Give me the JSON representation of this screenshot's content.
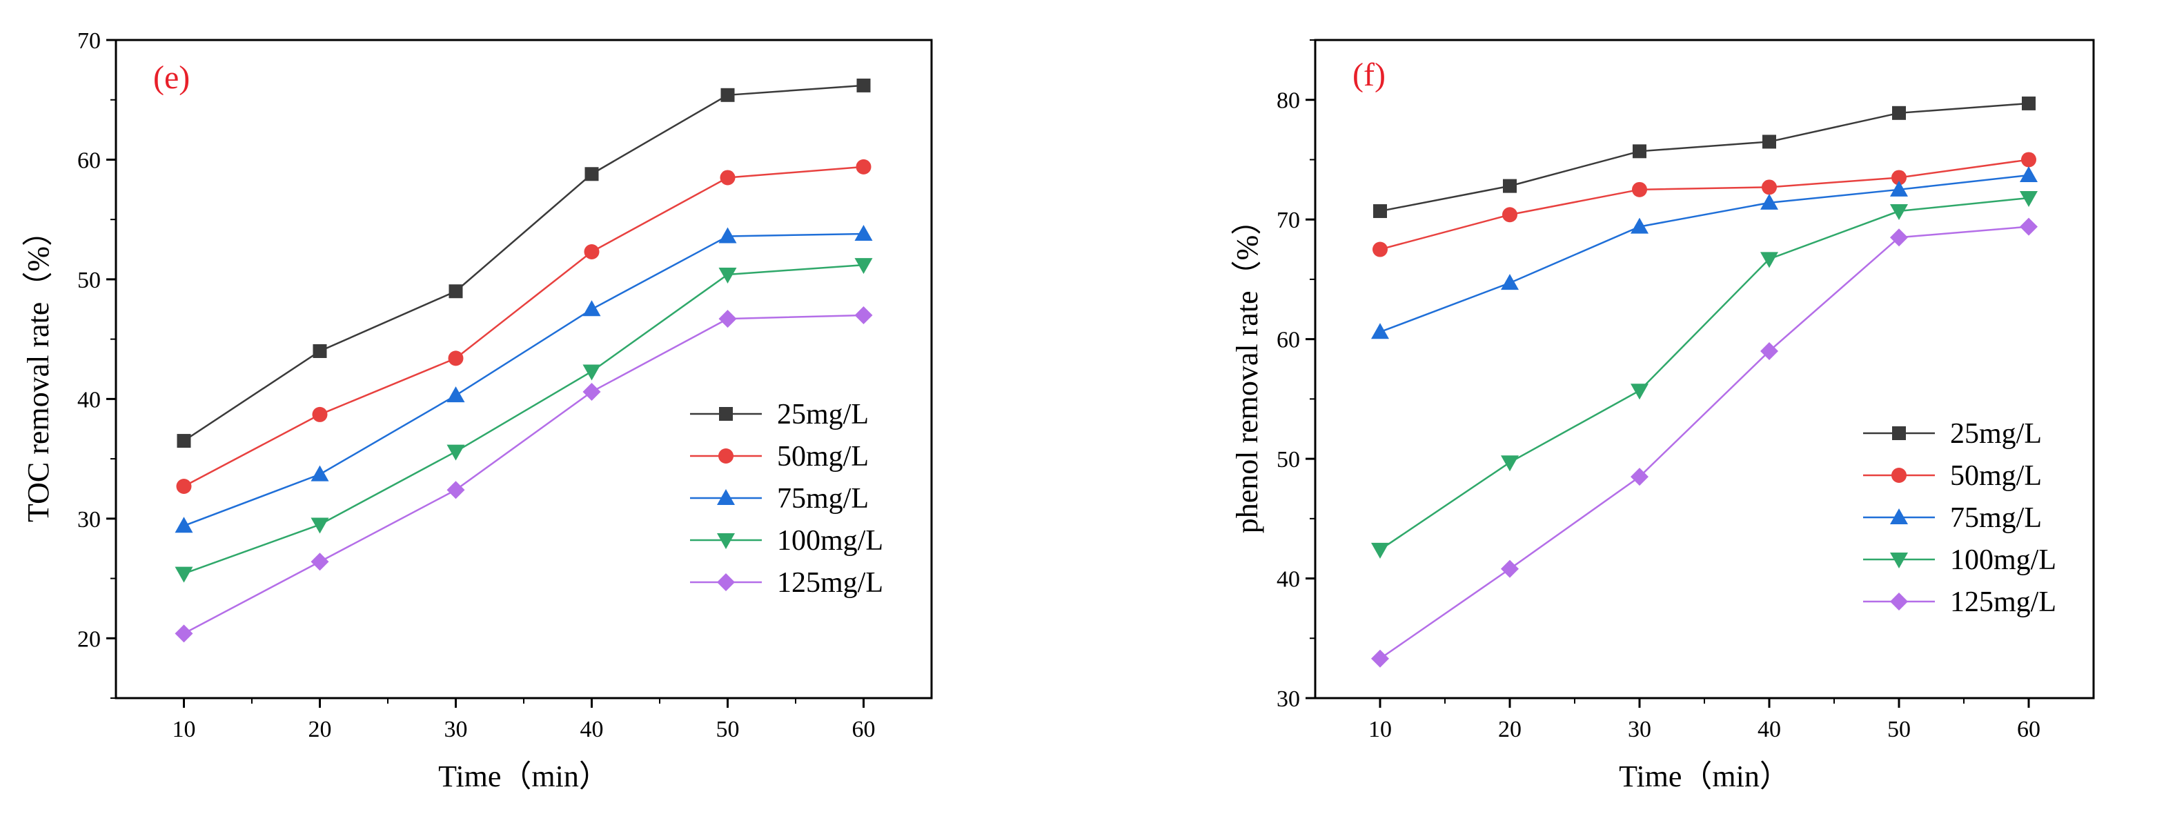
{
  "colors": {
    "axis": "#000000",
    "panel_label": "#e8202a",
    "series": [
      "#3a3a3a",
      "#e8413f",
      "#1f6fd8",
      "#2fa86a",
      "#b46ee8"
    ]
  },
  "chart_data": [
    {
      "type": "line",
      "panel_label": "(e)",
      "title": "",
      "xlabel": "Time（min）",
      "ylabel": "TOC removal rate（%）",
      "x": [
        10,
        20,
        30,
        40,
        50,
        60
      ],
      "xlim": [
        5,
        65
      ],
      "ylim": [
        15,
        70
      ],
      "x_ticks": [
        "10",
        "20",
        "30",
        "40",
        "50",
        "60"
      ],
      "y_ticks": [
        "20",
        "30",
        "40",
        "50",
        "60",
        "70"
      ],
      "legend_position": "center-right",
      "series": [
        {
          "name": "25mg/L",
          "marker": "square",
          "values": [
            36.5,
            44.0,
            49.0,
            58.8,
            65.4,
            66.2
          ]
        },
        {
          "name": "50mg/L",
          "marker": "circle",
          "values": [
            32.7,
            38.7,
            43.4,
            52.3,
            58.5,
            59.4
          ]
        },
        {
          "name": "75mg/L",
          "marker": "triangle-up",
          "values": [
            29.4,
            33.7,
            40.3,
            47.5,
            53.6,
            53.8
          ]
        },
        {
          "name": "100mg/L",
          "marker": "triangle-down",
          "values": [
            25.4,
            29.5,
            35.6,
            42.3,
            50.4,
            51.2
          ]
        },
        {
          "name": "125mg/L",
          "marker": "diamond",
          "values": [
            20.4,
            26.4,
            32.4,
            40.6,
            46.7,
            47.0
          ]
        }
      ]
    },
    {
      "type": "line",
      "panel_label": "(f)",
      "title": "",
      "xlabel": "Time（min）",
      "ylabel": "phenol removal rate（%）",
      "x": [
        10,
        20,
        30,
        40,
        50,
        60
      ],
      "xlim": [
        5,
        65
      ],
      "ylim": [
        30,
        85
      ],
      "x_ticks": [
        "10",
        "20",
        "30",
        "40",
        "50",
        "60"
      ],
      "y_ticks": [
        "30",
        "40",
        "50",
        "60",
        "70",
        "80"
      ],
      "legend_position": "center-right",
      "series": [
        {
          "name": "25mg/L",
          "marker": "square",
          "values": [
            70.7,
            72.8,
            75.7,
            76.5,
            78.9,
            79.7
          ]
        },
        {
          "name": "50mg/L",
          "marker": "circle",
          "values": [
            67.5,
            70.4,
            72.5,
            72.7,
            73.5,
            75.0
          ]
        },
        {
          "name": "75mg/L",
          "marker": "triangle-up",
          "values": [
            60.6,
            64.7,
            69.4,
            71.4,
            72.5,
            73.7
          ]
        },
        {
          "name": "100mg/L",
          "marker": "triangle-down",
          "values": [
            42.4,
            49.7,
            55.7,
            66.7,
            70.7,
            71.8
          ]
        },
        {
          "name": "125mg/L",
          "marker": "diamond",
          "values": [
            33.3,
            40.8,
            48.5,
            59.0,
            68.5,
            69.4
          ]
        }
      ]
    }
  ]
}
